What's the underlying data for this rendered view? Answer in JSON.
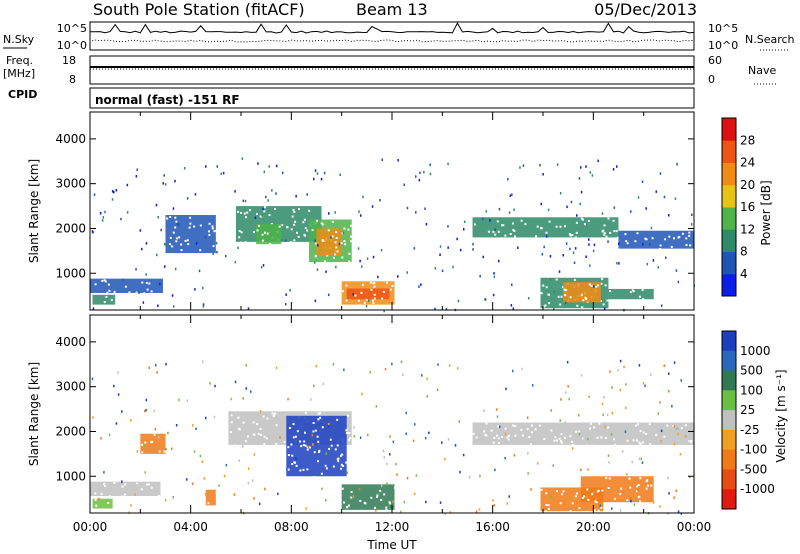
{
  "header": {
    "title": "South Pole Station (fitACF)",
    "beam": "Beam 13",
    "date": "05/Dec/2013"
  },
  "top_panels": {
    "nsky_label": "N.Sky",
    "nsearch_label": "N.Search",
    "noise_ticks": [
      "10^5",
      "10^0"
    ],
    "freq_label_1": "Freq.",
    "freq_label_2": "[MHz]",
    "freq_ticks": [
      "18",
      "8"
    ],
    "nave_label": "Nave",
    "nave_ticks": [
      "60",
      "0"
    ],
    "cpid_label": "CPID",
    "cpid_text": "normal (fast) -151 RF"
  },
  "colors": {
    "power": [
      "#0b1ee8",
      "#1f55b5",
      "#2e8a69",
      "#4fb34a",
      "#e6c414",
      "#f08c14",
      "#ee5515",
      "#dd1111"
    ],
    "velocity": [
      "#1b3fbf",
      "#2a68c0",
      "#2f7a52",
      "#6bc043",
      "#c0c0c0",
      "#f0a020",
      "#f07a18",
      "#e84c14",
      "#e01a10"
    ]
  },
  "chart_data": [
    {
      "type": "heatmap",
      "name": "power",
      "ylabel": "Slant Range [km]",
      "yticks": [
        "1000",
        "2000",
        "3000",
        "4000"
      ],
      "ylim": [
        180,
        4600
      ],
      "colorbar_label": "Power [dB]",
      "colorbar_ticks": [
        "4",
        "8",
        "12",
        "16",
        "20",
        "24",
        "28"
      ],
      "cmin": 0,
      "cmax": 32,
      "regions": [
        {
          "t0": 0.0,
          "t1": 2.9,
          "r0": 560,
          "r1": 880,
          "v": 5
        },
        {
          "t0": 0.1,
          "t1": 1.0,
          "r0": 300,
          "r1": 520,
          "v": 9
        },
        {
          "t0": 5.8,
          "t1": 9.2,
          "r0": 1700,
          "r1": 2500,
          "v": 10
        },
        {
          "t0": 6.6,
          "t1": 7.6,
          "r0": 1650,
          "r1": 2100,
          "v": 14
        },
        {
          "t0": 8.7,
          "t1": 10.4,
          "r0": 1250,
          "r1": 2200,
          "v": 13
        },
        {
          "t0": 9.0,
          "t1": 10.0,
          "r0": 1400,
          "r1": 2000,
          "v": 21
        },
        {
          "t0": 10.0,
          "t1": 12.1,
          "r0": 300,
          "r1": 820,
          "v": 20
        },
        {
          "t0": 10.2,
          "t1": 11.9,
          "r0": 420,
          "r1": 660,
          "v": 27
        },
        {
          "t0": 15.2,
          "t1": 21.0,
          "r0": 1800,
          "r1": 2250,
          "v": 9
        },
        {
          "t0": 21.0,
          "t1": 24.0,
          "r0": 1550,
          "r1": 1950,
          "v": 7
        },
        {
          "t0": 17.9,
          "t1": 20.6,
          "r0": 220,
          "r1": 900,
          "v": 11
        },
        {
          "t0": 18.8,
          "t1": 20.3,
          "r0": 350,
          "r1": 800,
          "v": 21
        },
        {
          "t0": 20.6,
          "t1": 22.4,
          "r0": 420,
          "r1": 650,
          "v": 11
        },
        {
          "t0": 3.0,
          "t1": 5.0,
          "r0": 1450,
          "r1": 2300,
          "v": 5
        }
      ]
    },
    {
      "type": "heatmap",
      "name": "velocity",
      "ylabel": "Slant Range [km]",
      "yticks": [
        "1000",
        "2000",
        "3000",
        "4000"
      ],
      "ylim": [
        180,
        4600
      ],
      "xlabel": "Time UT",
      "xticks": [
        "00:00",
        "04:00",
        "08:00",
        "12:00",
        "16:00",
        "20:00",
        "00:00"
      ],
      "xlim": [
        0,
        24
      ],
      "colorbar_label": "Velocity [m s⁻¹]",
      "colorbar_ticks": [
        "1000",
        "500",
        "100",
        "25",
        "-25",
        "-100",
        "-500",
        "-1000"
      ],
      "regions": [
        {
          "t0": 0.0,
          "t1": 2.8,
          "r0": 560,
          "r1": 880,
          "v": "gray"
        },
        {
          "t0": 0.1,
          "t1": 0.9,
          "r0": 280,
          "r1": 500,
          "v": "green"
        },
        {
          "t0": 2.0,
          "t1": 3.0,
          "r0": 1500,
          "r1": 1950,
          "v": "orange"
        },
        {
          "t0": 5.5,
          "t1": 10.4,
          "r0": 1700,
          "r1": 2450,
          "v": "gray"
        },
        {
          "t0": 7.8,
          "t1": 10.2,
          "r0": 1000,
          "r1": 2350,
          "v": "blue"
        },
        {
          "t0": 10.0,
          "t1": 12.1,
          "r0": 250,
          "r1": 820,
          "v": "darkgreen"
        },
        {
          "t0": 15.2,
          "t1": 24.0,
          "r0": 1700,
          "r1": 2200,
          "v": "gray"
        },
        {
          "t0": 17.9,
          "t1": 20.4,
          "r0": 220,
          "r1": 750,
          "v": "orange"
        },
        {
          "t0": 19.5,
          "t1": 22.4,
          "r0": 420,
          "r1": 1000,
          "v": "orange"
        },
        {
          "t0": 4.6,
          "t1": 5.0,
          "r0": 350,
          "r1": 700,
          "v": "orange"
        }
      ]
    }
  ]
}
